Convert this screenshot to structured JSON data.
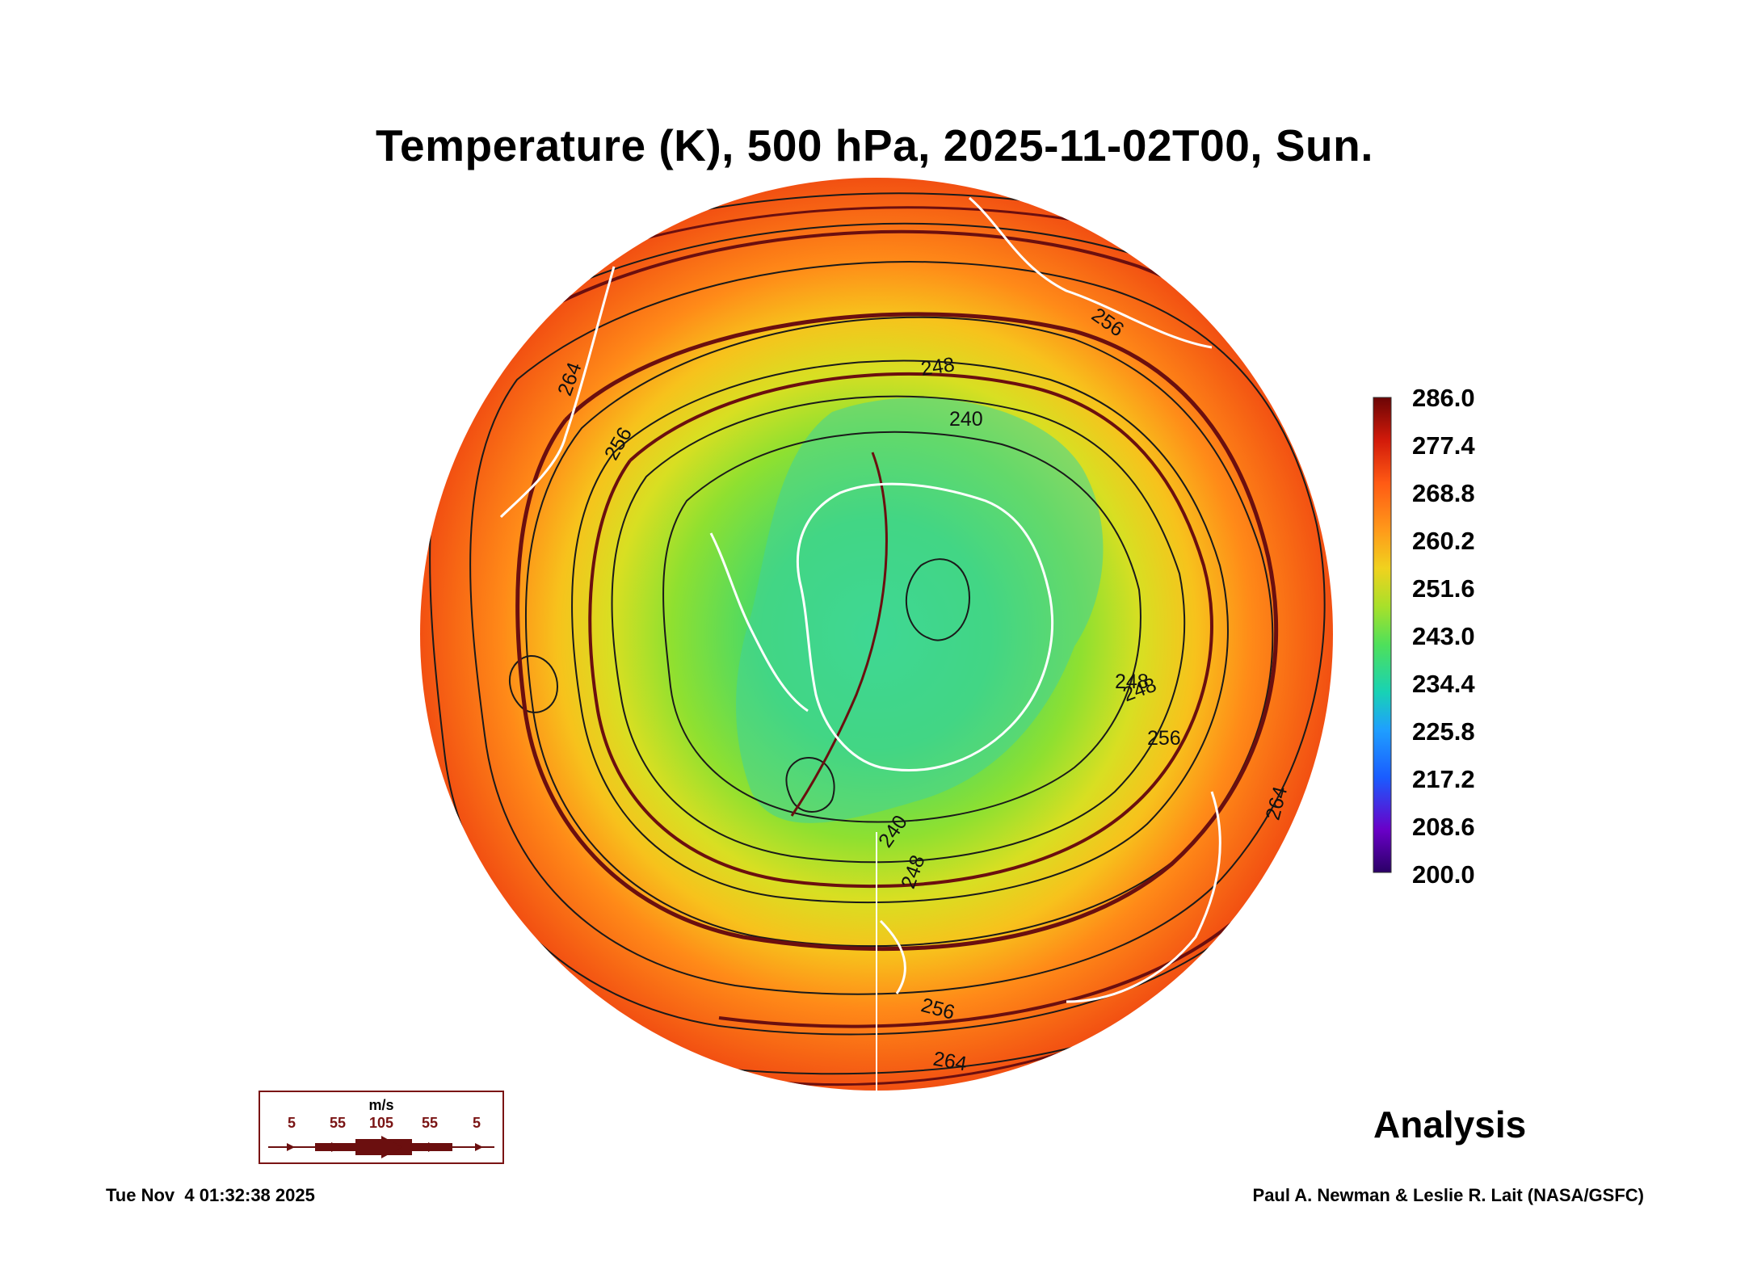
{
  "title": "Temperature (K), 500 hPa, 2025-11-02T00, Sun.",
  "map": {
    "projection": "south polar stereographic",
    "field": "temperature",
    "contour_labels": [
      "264",
      "256",
      "248",
      "240",
      "240",
      "248",
      "256",
      "256",
      "264",
      "248",
      "256",
      "264",
      "248"
    ],
    "colors": {
      "coastline": "#ffffff",
      "streamline": "#6b0f0f",
      "contour": "#1a1a1a"
    }
  },
  "colorbar": {
    "labels": [
      "286.0",
      "277.4",
      "268.8",
      "260.2",
      "251.6",
      "243.0",
      "234.4",
      "225.8",
      "217.2",
      "208.6",
      "200.0"
    ],
    "range": [
      200.0,
      286.0
    ],
    "colors": [
      "#2a0066",
      "#6a00c8",
      "#1a5cff",
      "#1f9fff",
      "#18d2b4",
      "#4fe05a",
      "#a8e02a",
      "#f0d21e",
      "#ff9a1a",
      "#ff5a14",
      "#d21a0a",
      "#6b0505"
    ]
  },
  "wind_legend": {
    "unit": "m/s",
    "speeds": [
      "5",
      "55",
      "105",
      "55",
      "5"
    ]
  },
  "analysis_label": "Analysis",
  "footer": {
    "timestamp": "Tue Nov  4 01:32:38 2025",
    "credit": "Paul A. Newman & Leslie R. Lait (NASA/GSFC)"
  }
}
